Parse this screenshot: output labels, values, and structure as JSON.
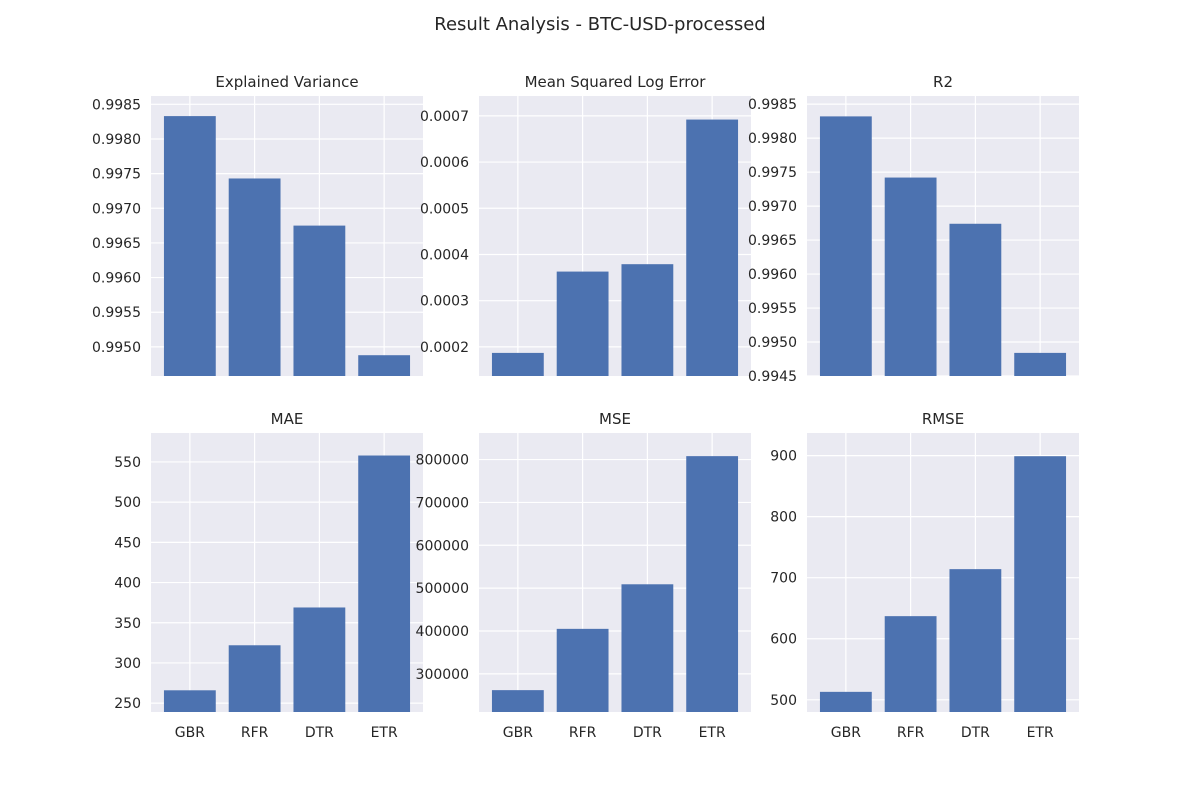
{
  "figure": {
    "title": "Result Analysis - BTC-USD-processed"
  },
  "colors": {
    "panel_background": "#eaeaf2",
    "grid": "#ffffff",
    "bar": "#4c72b0",
    "text": "#262626"
  },
  "chart_data": [
    {
      "type": "bar",
      "title": "Explained Variance",
      "categories": [
        "GBR",
        "RFR",
        "DTR",
        "ETR"
      ],
      "values": [
        0.99833,
        0.99743,
        0.99675,
        0.99488
      ],
      "ylim": [
        0.99458,
        0.99862
      ],
      "yticks": [
        0.995,
        0.9955,
        0.996,
        0.9965,
        0.997,
        0.9975,
        0.998,
        0.9985
      ],
      "ytick_labels": [
        "0.9950",
        "0.9955",
        "0.9960",
        "0.9965",
        "0.9970",
        "0.9975",
        "0.9980",
        "0.9985"
      ],
      "show_xticklabels": false,
      "grid": true
    },
    {
      "type": "bar",
      "title": "Mean Squared Log Error",
      "categories": [
        "GBR",
        "RFR",
        "DTR",
        "ETR"
      ],
      "values": [
        0.000187,
        0.000363,
        0.000379,
        0.000692
      ],
      "ylim": [
        0.000137,
        0.000743
      ],
      "yticks": [
        0.0002,
        0.0003,
        0.0004,
        0.0005,
        0.0006,
        0.0007
      ],
      "ytick_labels": [
        "0.0002",
        "0.0003",
        "0.0004",
        "0.0005",
        "0.0006",
        "0.0007"
      ],
      "show_xticklabels": false,
      "grid": true
    },
    {
      "type": "bar",
      "title": "R2",
      "categories": [
        "GBR",
        "RFR",
        "DTR",
        "ETR"
      ],
      "values": [
        0.99832,
        0.99742,
        0.99674,
        0.99484
      ],
      "ylim": [
        0.9945,
        0.99862
      ],
      "yticks": [
        0.9945,
        0.995,
        0.9955,
        0.996,
        0.9965,
        0.997,
        0.9975,
        0.998,
        0.9985
      ],
      "ytick_labels": [
        "0.9945",
        "0.9950",
        "0.9955",
        "0.9960",
        "0.9965",
        "0.9970",
        "0.9975",
        "0.9980",
        "0.9985"
      ],
      "show_xticklabels": false,
      "grid": true
    },
    {
      "type": "bar",
      "title": "MAE",
      "categories": [
        "GBR",
        "RFR",
        "DTR",
        "ETR"
      ],
      "values": [
        266,
        322,
        369,
        558
      ],
      "ylim": [
        239,
        586
      ],
      "yticks": [
        250,
        300,
        350,
        400,
        450,
        500,
        550
      ],
      "ytick_labels": [
        "250",
        "300",
        "350",
        "400",
        "450",
        "500",
        "550"
      ],
      "show_xticklabels": true,
      "grid": true
    },
    {
      "type": "bar",
      "title": "MSE",
      "categories": [
        "GBR",
        "RFR",
        "DTR",
        "ETR"
      ],
      "values": [
        262000,
        405000,
        509000,
        808000
      ],
      "ylim": [
        211000,
        862000
      ],
      "yticks": [
        300000,
        400000,
        500000,
        600000,
        700000,
        800000
      ],
      "ytick_labels": [
        "300000",
        "400000",
        "500000",
        "600000",
        "700000",
        "800000"
      ],
      "show_xticklabels": true,
      "grid": true
    },
    {
      "type": "bar",
      "title": "RMSE",
      "categories": [
        "GBR",
        "RFR",
        "DTR",
        "ETR"
      ],
      "values": [
        513,
        637,
        714,
        899
      ],
      "ylim": [
        480,
        937
      ],
      "yticks": [
        500,
        600,
        700,
        800,
        900
      ],
      "ytick_labels": [
        "500",
        "600",
        "700",
        "800",
        "900"
      ],
      "show_xticklabels": true,
      "grid": true
    }
  ]
}
